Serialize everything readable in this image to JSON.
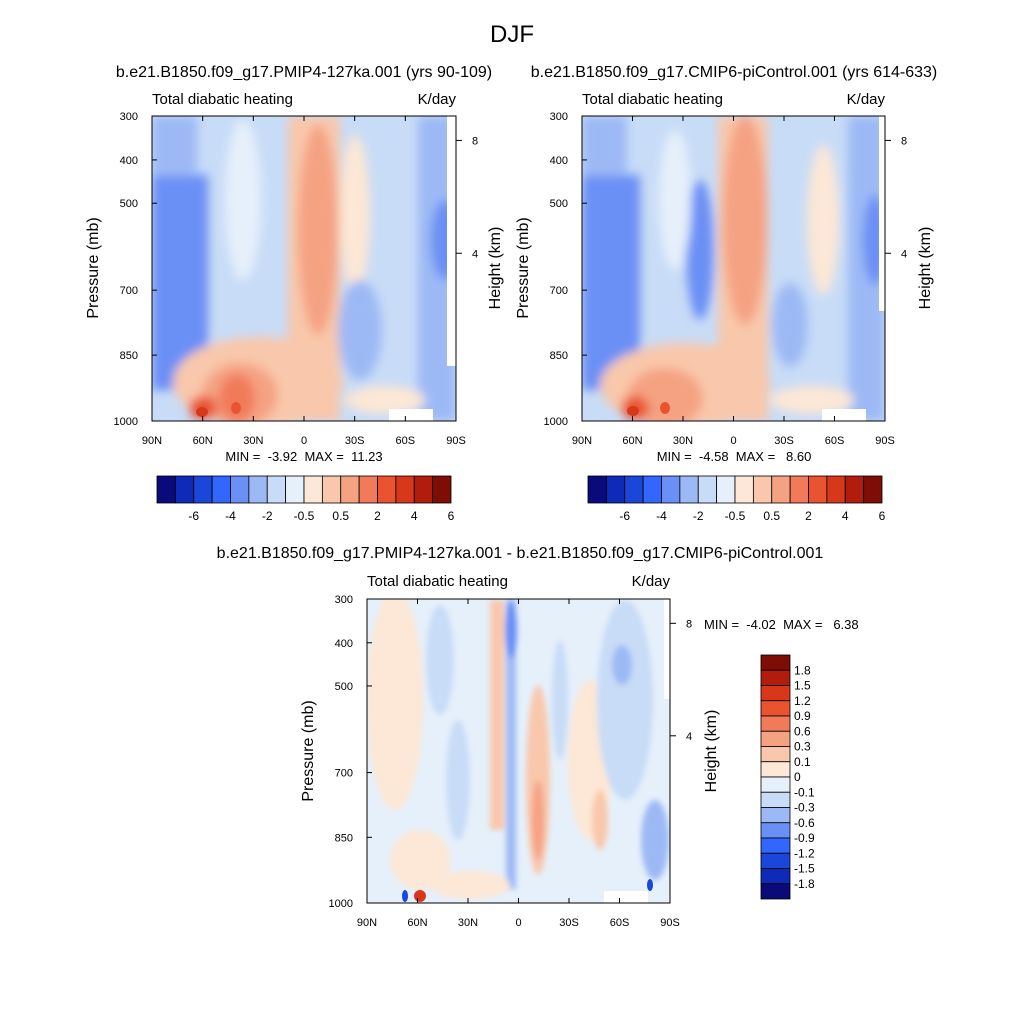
{
  "figure": {
    "title": "DJF"
  },
  "chart_data": [
    {
      "type": "heatmap",
      "title": "b.e21.B1850.f09_g17.PMIP4-127ka.001 (yrs 90-109)",
      "left_string": "Total diabatic heating",
      "right_string": "K/day",
      "ylabel": "Pressure (mb)",
      "ylabel_right": "Height (km)",
      "x_ticks": [
        "90N",
        "60N",
        "30N",
        "0",
        "30S",
        "60S",
        "90S"
      ],
      "y_ticks": [
        "300",
        "400",
        "500",
        "700",
        "850",
        "1000"
      ],
      "height_ticks": [
        "8",
        "4"
      ],
      "stats": "MIN =  -3.92  MAX =  11.23",
      "min": -3.92,
      "max": 11.23,
      "colorbar": {
        "orientation": "horizontal",
        "labels": [
          "-6",
          "-4",
          "-2",
          "-0.5",
          "0.5",
          "2",
          "4",
          "6"
        ],
        "colors": [
          "#0a0a7a",
          "#0d2ab8",
          "#1a46d9",
          "#3366ff",
          "#6a8ff5",
          "#9db9f5",
          "#c8dcf7",
          "#e6f0fb",
          "#fde7d6",
          "#f9c7ab",
          "#f5a283",
          "#f07a5a",
          "#e9532f",
          "#d7381a",
          "#b21c0c",
          "#7d0d05"
        ]
      }
    },
    {
      "type": "heatmap",
      "title": "b.e21.B1850.f09_g17.CMIP6-piControl.001 (yrs 614-633)",
      "left_string": "Total diabatic heating",
      "right_string": "K/day",
      "ylabel": "Pressure (mb)",
      "ylabel_right": "Height (km)",
      "x_ticks": [
        "90N",
        "60N",
        "30N",
        "0",
        "30S",
        "60S",
        "90S"
      ],
      "y_ticks": [
        "300",
        "400",
        "500",
        "700",
        "850",
        "1000"
      ],
      "height_ticks": [
        "8",
        "4"
      ],
      "stats": "MIN =  -4.58  MAX =   8.60",
      "min": -4.58,
      "max": 8.6,
      "colorbar": {
        "orientation": "horizontal",
        "labels": [
          "-6",
          "-4",
          "-2",
          "-0.5",
          "0.5",
          "2",
          "4",
          "6"
        ],
        "colors": [
          "#0a0a7a",
          "#0d2ab8",
          "#1a46d9",
          "#3366ff",
          "#6a8ff5",
          "#9db9f5",
          "#c8dcf7",
          "#e6f0fb",
          "#fde7d6",
          "#f9c7ab",
          "#f5a283",
          "#f07a5a",
          "#e9532f",
          "#d7381a",
          "#b21c0c",
          "#7d0d05"
        ]
      }
    },
    {
      "type": "heatmap",
      "title": "b.e21.B1850.f09_g17.PMIP4-127ka.001 - b.e21.B1850.f09_g17.CMIP6-piControl.001",
      "left_string": "Total diabatic heating",
      "right_string": "K/day",
      "ylabel": "Pressure (mb)",
      "ylabel_right": "Height (km)",
      "x_ticks": [
        "90N",
        "60N",
        "30N",
        "0",
        "30S",
        "60S",
        "90S"
      ],
      "y_ticks": [
        "300",
        "400",
        "500",
        "700",
        "850",
        "1000"
      ],
      "height_ticks": [
        "8",
        "4"
      ],
      "stats": "MIN =  -4.02  MAX =   6.38",
      "min": -4.02,
      "max": 6.38,
      "colorbar": {
        "orientation": "vertical",
        "labels": [
          "1.8",
          "1.5",
          "1.2",
          "0.9",
          "0.6",
          "0.3",
          "0.1",
          "0",
          "-0.1",
          "-0.3",
          "-0.6",
          "-0.9",
          "-1.2",
          "-1.5",
          "-1.8"
        ],
        "colors": [
          "#7d0d05",
          "#b21c0c",
          "#d7381a",
          "#e9532f",
          "#f07a5a",
          "#f5a283",
          "#f9c7ab",
          "#fde7d6",
          "#e6f0fb",
          "#c8dcf7",
          "#9db9f5",
          "#6a8ff5",
          "#3366ff",
          "#1a46d9",
          "#0d2ab8",
          "#0a0a7a"
        ]
      }
    }
  ]
}
